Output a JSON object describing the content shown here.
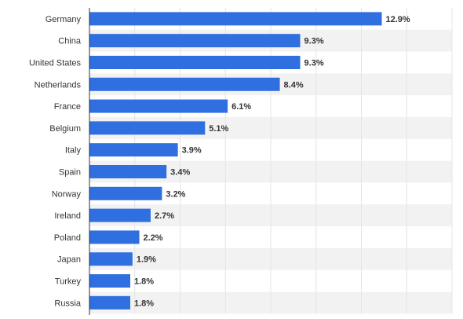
{
  "chart_data": {
    "type": "bar",
    "orientation": "horizontal",
    "categories": [
      "Germany",
      "China",
      "United States",
      "Netherlands",
      "France",
      "Belgium",
      "Italy",
      "Spain",
      "Norway",
      "Ireland",
      "Poland",
      "Japan",
      "Turkey",
      "Russia"
    ],
    "values": [
      12.9,
      9.3,
      9.3,
      8.4,
      6.1,
      5.1,
      3.9,
      3.4,
      3.2,
      2.7,
      2.2,
      1.9,
      1.8,
      1.8
    ],
    "value_labels": [
      "12.9%",
      "9.3%",
      "9.3%",
      "8.4%",
      "6.1%",
      "5.1%",
      "3.9%",
      "3.4%",
      "3.2%",
      "2.7%",
      "2.2%",
      "1.9%",
      "1.8%",
      "1.8%"
    ],
    "title": "",
    "xlabel": "",
    "ylabel": "",
    "xlim": [
      0,
      16
    ],
    "grid": true,
    "legend": "none",
    "colors": {
      "bar": "#2f6fe0",
      "band": "#f2f2f2",
      "grid": "#e4e4e4",
      "axis": "#333333",
      "category_text": "#333333",
      "value_text": "#333333"
    }
  }
}
